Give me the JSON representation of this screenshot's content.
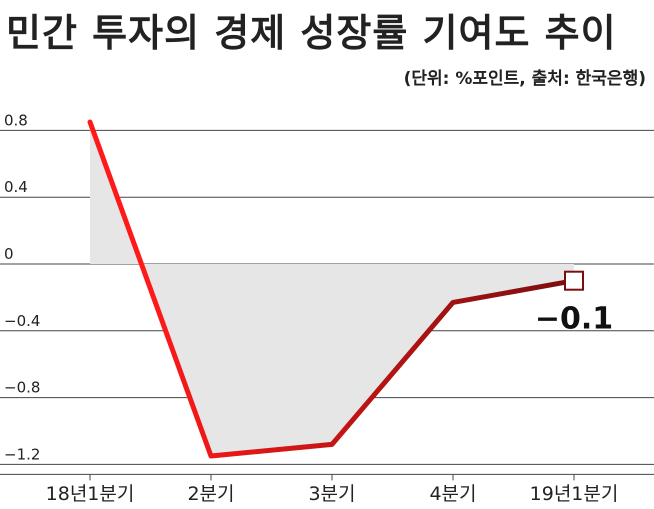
{
  "title": "민간 투자의 경제 성장률 기여도 추이",
  "subtitle": "(단위: %포인트, 출처: 한국은행)",
  "colors": {
    "line_start": "#ff1a1a",
    "line_end": "#7a0e0e",
    "fill": "#e6e6e6",
    "grid": "#444444",
    "marker_fill": "#ffffff",
    "marker_stroke": "#7a0e0e"
  },
  "chart_data": {
    "type": "line",
    "title": "민간 투자의 경제 성장률 기여도 추이",
    "subtitle": "(단위: %포인트, 출처: 한국은행)",
    "categories": [
      "18년1분기",
      "2분기",
      "3분기",
      "4분기",
      "19년1분기"
    ],
    "values": [
      0.85,
      -1.15,
      -1.08,
      -0.23,
      -0.1
    ],
    "y_ticks": [
      "0.8",
      "0.4",
      "0",
      "−0.4",
      "−0.8",
      "−1.2"
    ],
    "y_tick_values": [
      0.8,
      0.4,
      0,
      -0.4,
      -0.8,
      -1.2
    ],
    "ylim": [
      -1.2,
      0.9
    ],
    "grid": true,
    "area_fill_to_zero": true,
    "data_labels": [
      {
        "index": 4,
        "text": "−0.1"
      }
    ]
  }
}
